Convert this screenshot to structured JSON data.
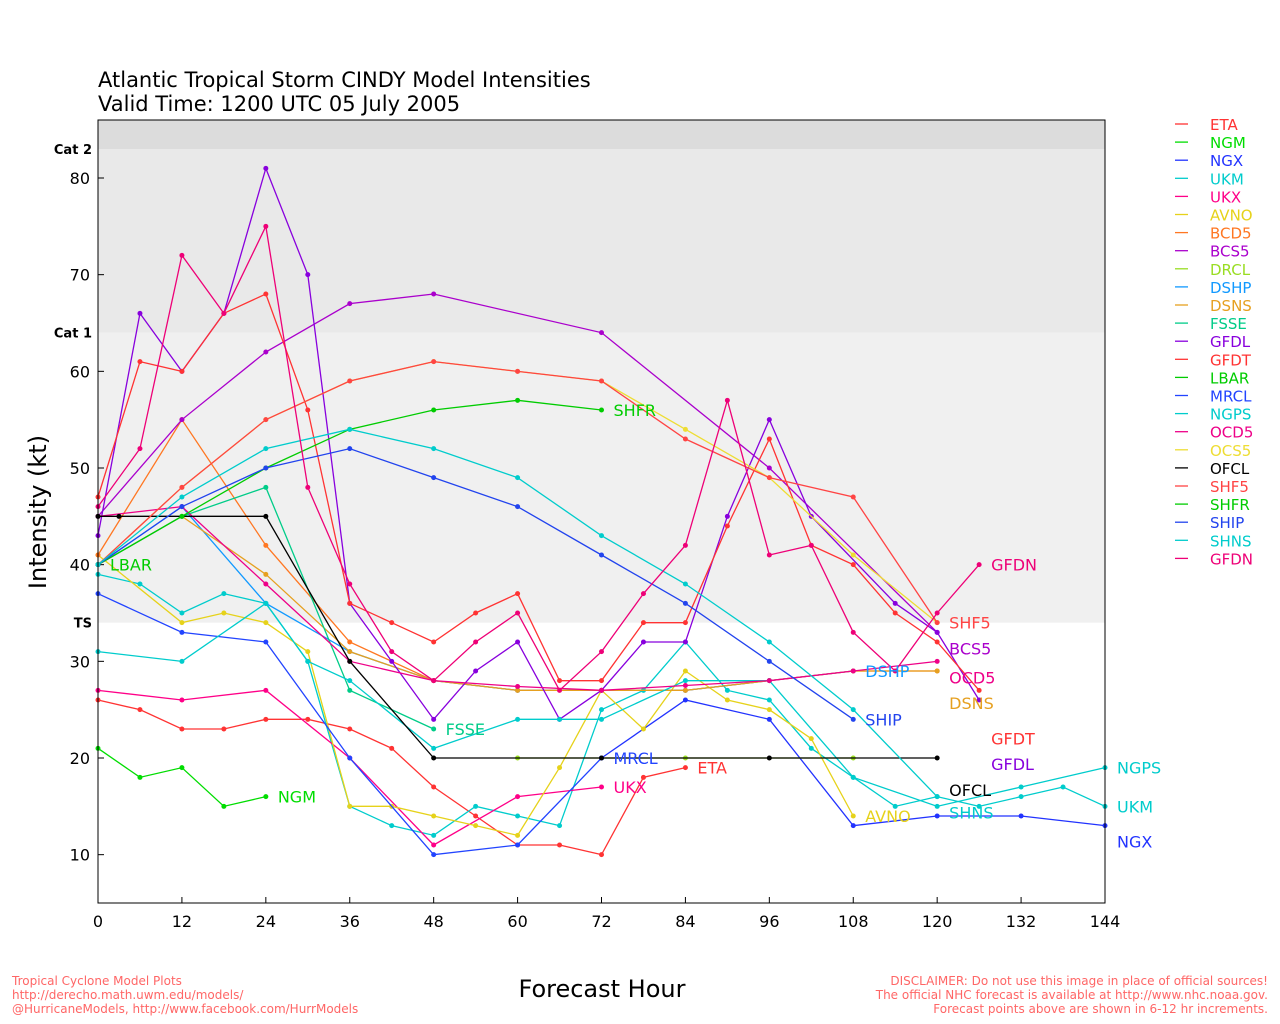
{
  "chart_data": {
    "type": "line",
    "title": "Atlantic Tropical Storm CINDY Model Intensities",
    "subtitle": "Valid Time: 1200 UTC 05 July 2005",
    "xlabel": "Forecast Hour",
    "ylabel": "Intensity (kt)",
    "xlim": [
      0,
      144
    ],
    "ylim": [
      5,
      86
    ],
    "xticks": [
      0,
      12,
      24,
      36,
      48,
      60,
      72,
      84,
      96,
      108,
      120,
      132,
      144
    ],
    "yticks": [
      10,
      20,
      30,
      40,
      50,
      60,
      70,
      80
    ],
    "bands": [
      {
        "label": "TS",
        "from": 34,
        "to": 64,
        "color": "#f0f0f0"
      },
      {
        "label": "Cat 1",
        "from": 64,
        "to": 83,
        "color": "#e9e9e9"
      },
      {
        "label": "Cat 2",
        "from": 83,
        "to": 86,
        "color": "#dcdcdc"
      }
    ],
    "series": [
      {
        "name": "ETA",
        "color": "#ff3333",
        "label": true,
        "x": [
          0,
          6,
          12,
          18,
          24,
          30,
          36,
          42,
          48,
          54,
          60,
          66,
          72,
          78,
          84
        ],
        "y": [
          26,
          25,
          23,
          23,
          24,
          24,
          23,
          21,
          17,
          14,
          11,
          11,
          10,
          18,
          19
        ]
      },
      {
        "name": "NGM",
        "color": "#00dd00",
        "label": true,
        "x": [
          0,
          6,
          12,
          18,
          24
        ],
        "y": [
          21,
          18,
          19,
          15,
          16
        ]
      },
      {
        "name": "NGX",
        "color": "#2233ff",
        "label": true,
        "x": [
          72,
          84,
          96,
          108,
          120,
          132,
          144
        ],
        "y": [
          20,
          26,
          24,
          13,
          14,
          14,
          13
        ]
      },
      {
        "name": "UKM",
        "color": "#00cccc",
        "label": true,
        "x": [
          0,
          6,
          12,
          18,
          24,
          30,
          36,
          42,
          48,
          54,
          60,
          66,
          72,
          78,
          84,
          90,
          96,
          102,
          108,
          114,
          120,
          126,
          132,
          138,
          144
        ],
        "y": [
          39,
          38,
          35,
          37,
          36,
          30,
          15,
          13,
          12,
          15,
          14,
          13,
          25,
          27,
          32,
          27,
          26,
          21,
          18,
          15,
          16,
          15,
          16,
          17,
          15
        ]
      },
      {
        "name": "UKX",
        "color": "#ff0088",
        "label": true,
        "x": [
          0,
          12,
          24,
          36,
          48,
          60,
          72
        ],
        "y": [
          27,
          26,
          27,
          20,
          11,
          16,
          17
        ]
      },
      {
        "name": "AVNO",
        "color": "#e6d21a",
        "label": true,
        "x": [
          0,
          12,
          18,
          24,
          30,
          36,
          42,
          48,
          54,
          60,
          66,
          72,
          78,
          84,
          90,
          96,
          102,
          108
        ],
        "y": [
          41,
          34,
          35,
          34,
          31,
          15,
          15,
          14,
          13,
          12,
          19,
          27,
          23,
          29,
          26,
          25,
          22,
          14
        ]
      },
      {
        "name": "BCD5",
        "color": "#ff7722",
        "label": false,
        "x": [
          0,
          12,
          24,
          36,
          48,
          60,
          72,
          84,
          96,
          108,
          120
        ],
        "y": [
          41,
          55,
          42,
          32,
          28,
          27,
          27,
          27,
          28,
          29,
          29
        ]
      },
      {
        "name": "BCS5",
        "color": "#aa00cc",
        "label": true,
        "x": [
          0,
          12,
          24,
          36,
          48,
          72,
          96,
          120
        ],
        "y": [
          45,
          55,
          62,
          67,
          68,
          64,
          50,
          33
        ]
      },
      {
        "name": "DRCL",
        "color": "#99dd22",
        "label": false,
        "x": [
          60,
          84,
          108
        ],
        "y": [
          20,
          20,
          20
        ]
      },
      {
        "name": "DSHP",
        "color": "#1199ff",
        "label": true,
        "x": [
          0,
          12,
          24,
          36,
          48,
          60,
          72,
          84,
          96,
          108
        ],
        "y": [
          40,
          46,
          36,
          31,
          28,
          27,
          27,
          27,
          28,
          29
        ]
      },
      {
        "name": "DSNS",
        "color": "#e6a020",
        "label": true,
        "x": [
          0,
          12,
          24,
          36,
          48,
          60,
          72,
          84,
          96,
          108,
          120
        ],
        "y": [
          40,
          45,
          39,
          31,
          28,
          27,
          27,
          27,
          28,
          29,
          29
        ]
      },
      {
        "name": "FSSE",
        "color": "#00cc88",
        "label": true,
        "x": [
          0,
          12,
          24,
          36,
          48
        ],
        "y": [
          40,
          45,
          48,
          27,
          23
        ]
      },
      {
        "name": "GFDL",
        "color": "#8800dd",
        "label": true,
        "x": [
          0,
          6,
          12,
          18,
          24,
          30,
          36,
          42,
          48,
          54,
          60,
          66,
          72,
          78,
          84,
          90,
          96,
          102,
          114,
          120,
          126
        ],
        "y": [
          43,
          66,
          60,
          66,
          81,
          70,
          36,
          30,
          24,
          29,
          32,
          24,
          27,
          32,
          32,
          45,
          55,
          45,
          36,
          33,
          26
        ]
      },
      {
        "name": "GFDT",
        "color": "#ff3333",
        "label": true,
        "x": [
          0,
          6,
          12,
          18,
          24,
          30,
          36,
          42,
          48,
          54,
          60,
          66,
          72,
          78,
          84,
          90,
          96,
          102,
          108,
          114,
          120,
          126
        ],
        "y": [
          47,
          61,
          60,
          66,
          68,
          56,
          36,
          34,
          32,
          35,
          37,
          28,
          28,
          34,
          34,
          44,
          53,
          42,
          40,
          35,
          32,
          27
        ]
      },
      {
        "name": "LBAR",
        "color": "#00cc00",
        "label": true,
        "x": [
          0
        ],
        "y": [
          40
        ]
      },
      {
        "name": "MRCL",
        "color": "#2244ff",
        "label": true,
        "x": [
          0,
          12,
          24,
          36,
          48,
          60,
          72
        ],
        "y": [
          37,
          33,
          32,
          20,
          10,
          11,
          20
        ]
      },
      {
        "name": "NGPS",
        "color": "#00cccc",
        "label": true,
        "x": [
          0,
          12,
          24,
          30,
          36,
          48,
          60,
          66,
          72,
          84,
          96,
          108,
          120,
          132,
          144
        ],
        "y": [
          31,
          30,
          36,
          30,
          28,
          21,
          24,
          24,
          24,
          28,
          28,
          18,
          15,
          17,
          19
        ]
      },
      {
        "name": "OCD5",
        "color": "#ee0088",
        "label": true,
        "x": [
          0,
          12,
          24,
          36,
          48,
          60,
          72,
          84,
          96,
          108,
          120
        ],
        "y": [
          45,
          46,
          38,
          30,
          28,
          27.4,
          27,
          27.5,
          28,
          29,
          30
        ]
      },
      {
        "name": "OCS5",
        "color": "#eedd33",
        "label": false,
        "x": [
          0,
          12,
          24,
          36,
          48,
          60,
          72,
          84,
          96,
          108,
          120
        ],
        "y": [
          40,
          48,
          55,
          59,
          61,
          60,
          59,
          54,
          49,
          41,
          34
        ]
      },
      {
        "name": "OFCL",
        "color": "#000000",
        "label": true,
        "x": [
          0,
          3,
          24,
          36,
          48,
          72,
          96,
          120
        ],
        "y": [
          45,
          45,
          45,
          30,
          20,
          20,
          20,
          20
        ]
      },
      {
        "name": "SHF5",
        "color": "#ff4444",
        "label": true,
        "x": [
          0,
          12,
          24,
          36,
          48,
          60,
          72,
          84,
          96,
          108,
          120
        ],
        "y": [
          40,
          48,
          55,
          59,
          61,
          60,
          59,
          53,
          49,
          47,
          34
        ]
      },
      {
        "name": "SHFR",
        "color": "#00cc00",
        "label": true,
        "x": [
          0,
          12,
          24,
          36,
          48,
          60,
          72
        ],
        "y": [
          40,
          45,
          50,
          54,
          56,
          57,
          56
        ]
      },
      {
        "name": "SHIP",
        "color": "#2244ee",
        "label": true,
        "x": [
          0,
          12,
          24,
          36,
          48,
          60,
          72,
          84,
          96,
          108
        ],
        "y": [
          40,
          46,
          50,
          52,
          49,
          46,
          41,
          36,
          30,
          24
        ]
      },
      {
        "name": "SHNS",
        "color": "#00cccc",
        "label": true,
        "x": [
          0,
          12,
          24,
          36,
          48,
          60,
          72,
          84,
          96,
          108,
          120
        ],
        "y": [
          40,
          47,
          52,
          54,
          52,
          49,
          43,
          38,
          32,
          25,
          16
        ]
      },
      {
        "name": "GFDN",
        "color": "#ee0077",
        "label": true,
        "x": [
          0,
          6,
          12,
          18,
          24,
          30,
          36,
          42,
          48,
          54,
          60,
          66,
          72,
          78,
          84,
          90,
          96,
          102,
          108,
          114,
          120,
          126
        ],
        "y": [
          46,
          52,
          72,
          66,
          75,
          48,
          38,
          31,
          28,
          32,
          35,
          27,
          31,
          37,
          42,
          57,
          41,
          42,
          33,
          29,
          35,
          40
        ]
      }
    ]
  },
  "footer": {
    "left": [
      "Tropical Cyclone Model Plots",
      "http://derecho.math.uwm.edu/models/",
      "@HurricaneModels, http://www.facebook.com/HurrModels"
    ],
    "right": [
      "DISCLAIMER: Do not use this image in place of official sources!",
      "The official NHC forecast is available at http://www.nhc.noaa.gov.",
      "Forecast points above are shown in 6-12 hr increments."
    ]
  }
}
